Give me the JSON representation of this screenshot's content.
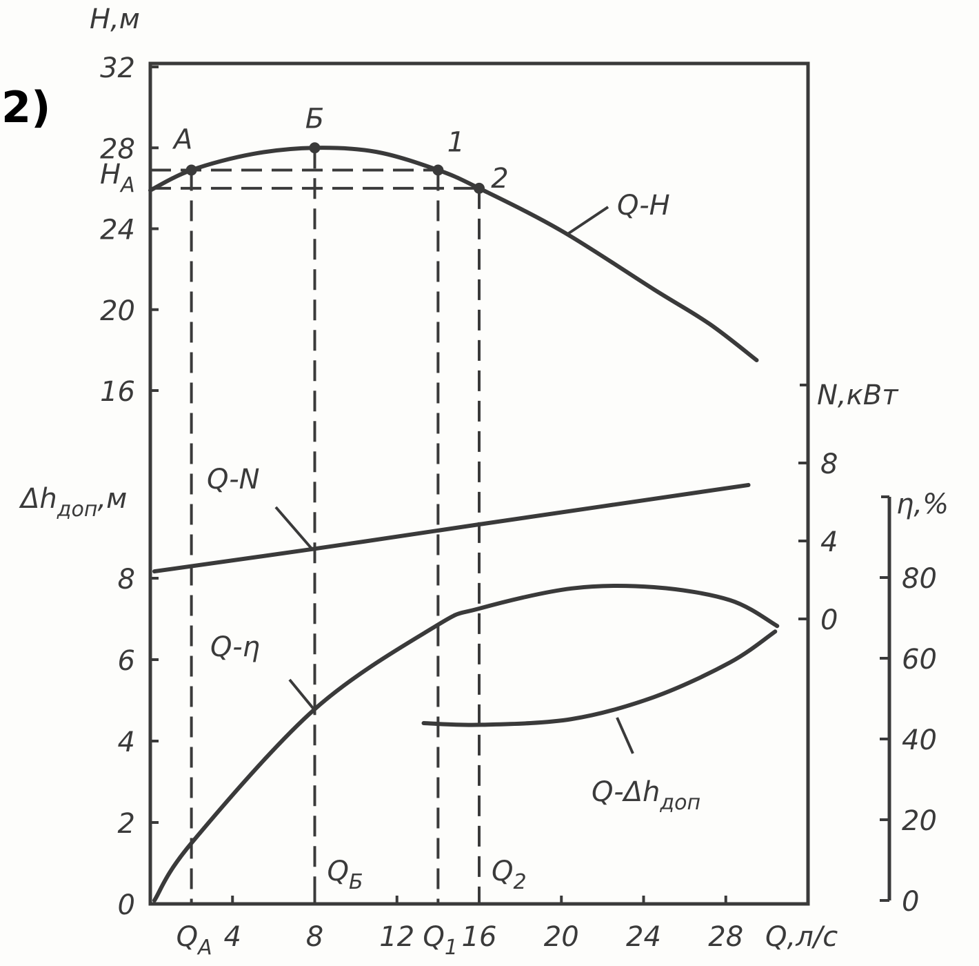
{
  "chart_data": {
    "type": "line",
    "panel_label": "2)",
    "color": "#3a3a3a",
    "x_label": [
      "Q,л/с"
    ],
    "xlim": [
      0,
      32
    ],
    "xticks": [
      4,
      8,
      12,
      16,
      20,
      24,
      28
    ],
    "y_axes": [
      {
        "id": "h",
        "label": [
          "H,м"
        ],
        "lim": [
          16,
          32
        ],
        "ticks": [
          16,
          20,
          24,
          28,
          32
        ]
      },
      {
        "id": "dh",
        "label": [
          "Δh",
          "доп",
          ",м"
        ],
        "lim": [
          0,
          10
        ],
        "ticks": [
          0,
          2,
          4,
          6,
          8
        ]
      },
      {
        "id": "n",
        "label": [
          "N,кВт"
        ],
        "lim": [
          0,
          12
        ],
        "ticks": [
          0,
          4,
          8
        ]
      },
      {
        "id": "eta",
        "label": [
          "η,%"
        ],
        "lim": [
          0,
          100
        ],
        "ticks": [
          0,
          20,
          40,
          60,
          80
        ]
      }
    ],
    "series": [
      {
        "name": [
          "Q-H"
        ],
        "axis": "h",
        "x": [
          0,
          2,
          5,
          8,
          11,
          14,
          16,
          20,
          24.5,
          27.2,
          29.5
        ],
        "values": [
          25.9,
          26.9,
          27.7,
          28.0,
          27.8,
          26.9,
          26.0,
          23.9,
          21.0,
          19.3,
          17.5
        ]
      },
      {
        "name": [
          "Q-N"
        ],
        "axis": "n",
        "x": [
          0.2,
          8,
          16,
          29.1
        ],
        "values": [
          2.44,
          3.6,
          4.85,
          6.87
        ]
      },
      {
        "name": [
          "Q-η"
        ],
        "axis": "eta",
        "x": [
          0.2,
          2,
          8,
          13.9,
          16,
          20.5,
          24.5,
          28.2,
          30.5
        ],
        "values": [
          0,
          14.2,
          47.4,
          68,
          72.3,
          77.3,
          77.6,
          74.4,
          68
        ]
      },
      {
        "name": [
          "Q-Δh",
          "доп"
        ],
        "axis": "dh",
        "x": [
          13.3,
          16.1,
          20.5,
          24.5,
          28.2,
          30.4
        ],
        "values": [
          4.44,
          4.4,
          4.54,
          5.08,
          5.93,
          6.69
        ]
      }
    ],
    "points": [
      {
        "label": "A",
        "x": 2,
        "value": 26.9,
        "q_label": [
          "Q",
          "A"
        ],
        "h_label": [
          "H",
          "A"
        ]
      },
      {
        "label": "Б",
        "x": 8,
        "value": 28.0,
        "q_label": [
          "Q",
          "Б"
        ]
      },
      {
        "label": "1",
        "x": 14,
        "value": 26.9,
        "q_label": [
          "Q",
          "1"
        ]
      },
      {
        "label": "2",
        "x": 16,
        "value": 26.0,
        "q_label": [
          "Q",
          "2"
        ]
      }
    ]
  }
}
